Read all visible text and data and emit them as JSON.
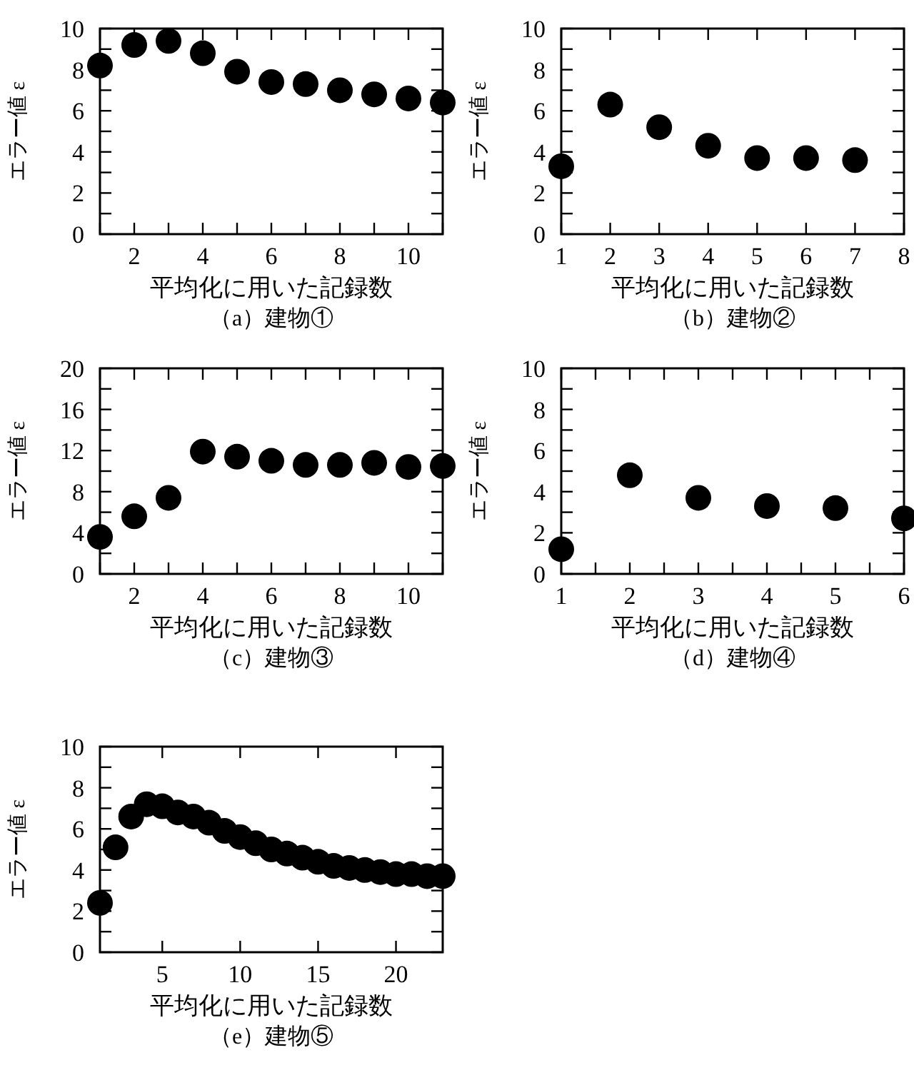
{
  "chart_data": [
    {
      "type": "scatter",
      "title": "（a）建物①",
      "xlabel": "平均化に用いた記録数",
      "ylabel": "エラー値 ε",
      "marker": "circle",
      "grid": false,
      "x": [
        1,
        2,
        3,
        4,
        5,
        6,
        7,
        8,
        9,
        10,
        11
      ],
      "series": [
        {
          "color": "#000000",
          "values": [
            8.2,
            9.2,
            9.4,
            8.8,
            7.9,
            7.4,
            7.3,
            7.0,
            6.8,
            6.6,
            6.4
          ]
        }
      ],
      "xlim": [
        1,
        11
      ],
      "xticks": [
        {
          "value": 1,
          "label": null
        },
        2,
        {
          "value": 3,
          "label": null
        },
        4,
        {
          "value": 5,
          "label": null
        },
        6,
        {
          "value": 7,
          "label": null
        },
        8,
        {
          "value": 9,
          "label": null
        },
        10,
        {
          "value": 11,
          "label": null
        }
      ],
      "ylim": [
        0,
        10
      ],
      "yticks": [
        0,
        {
          "value": 1,
          "label": null
        },
        2,
        {
          "value": 3,
          "label": null
        },
        4,
        {
          "value": 5,
          "label": null
        },
        6,
        {
          "value": 7,
          "label": null
        },
        8,
        {
          "value": 9,
          "label": null
        },
        10
      ]
    },
    {
      "type": "scatter",
      "title": "（b）建物②",
      "xlabel": "平均化に用いた記録数",
      "ylabel": "エラー値 ε",
      "marker": "circle",
      "grid": false,
      "x": [
        1,
        2,
        3,
        4,
        5,
        6,
        7
      ],
      "series": [
        {
          "color": "#000000",
          "values": [
            3.3,
            6.3,
            5.2,
            4.3,
            3.7,
            3.7,
            3.6
          ]
        }
      ],
      "xlim": [
        1,
        8
      ],
      "xticks": [
        1,
        2,
        3,
        4,
        5,
        6,
        7,
        8
      ],
      "ylim": [
        0,
        10
      ],
      "yticks": [
        0,
        {
          "value": 1,
          "label": null
        },
        2,
        {
          "value": 3,
          "label": null
        },
        4,
        {
          "value": 5,
          "label": null
        },
        6,
        {
          "value": 7,
          "label": null
        },
        8,
        {
          "value": 9,
          "label": null
        },
        10
      ]
    },
    {
      "type": "scatter",
      "title": "（c）建物③",
      "xlabel": "平均化に用いた記録数",
      "ylabel": "エラー値 ε",
      "marker": "circle",
      "grid": false,
      "x": [
        1,
        2,
        3,
        4,
        5,
        6,
        7,
        8,
        9,
        10,
        11
      ],
      "series": [
        {
          "color": "#000000",
          "values": [
            3.6,
            5.6,
            7.4,
            11.9,
            11.4,
            11.0,
            10.6,
            10.6,
            10.8,
            10.4,
            10.5
          ]
        }
      ],
      "xlim": [
        1,
        11
      ],
      "xticks": [
        {
          "value": 1,
          "label": null
        },
        2,
        {
          "value": 3,
          "label": null
        },
        4,
        {
          "value": 5,
          "label": null
        },
        6,
        {
          "value": 7,
          "label": null
        },
        8,
        {
          "value": 9,
          "label": null
        },
        10,
        {
          "value": 11,
          "label": null
        }
      ],
      "ylim": [
        0,
        20
      ],
      "yticks": [
        0,
        {
          "value": 2,
          "label": null
        },
        4,
        {
          "value": 6,
          "label": null
        },
        8,
        {
          "value": 10,
          "label": null
        },
        12,
        {
          "value": 14,
          "label": null
        },
        16,
        {
          "value": 18,
          "label": null
        },
        20
      ]
    },
    {
      "type": "scatter",
      "title": "（d）建物④",
      "xlabel": "平均化に用いた記録数",
      "ylabel": "エラー値 ε",
      "marker": "circle",
      "grid": false,
      "x": [
        1,
        2,
        3,
        4,
        5,
        6
      ],
      "series": [
        {
          "color": "#000000",
          "values": [
            1.2,
            4.8,
            3.7,
            3.3,
            3.2,
            2.7
          ]
        }
      ],
      "xlim": [
        1,
        6
      ],
      "xticks": [
        1,
        {
          "value": 1.5,
          "label": null
        },
        2,
        {
          "value": 2.5,
          "label": null
        },
        3,
        {
          "value": 3.5,
          "label": null
        },
        4,
        {
          "value": 4.5,
          "label": null
        },
        5,
        {
          "value": 5.5,
          "label": null
        },
        6
      ],
      "ylim": [
        0,
        10
      ],
      "yticks": [
        0,
        {
          "value": 1,
          "label": null
        },
        2,
        {
          "value": 3,
          "label": null
        },
        4,
        {
          "value": 5,
          "label": null
        },
        6,
        {
          "value": 7,
          "label": null
        },
        8,
        {
          "value": 9,
          "label": null
        },
        10
      ]
    },
    {
      "type": "scatter",
      "title": "（e）建物⑤",
      "xlabel": "平均化に用いた記録数",
      "ylabel": "エラー値 ε",
      "marker": "circle",
      "grid": false,
      "x": [
        1,
        2,
        3,
        4,
        5,
        6,
        7,
        8,
        9,
        10,
        11,
        12,
        13,
        14,
        15,
        16,
        17,
        18,
        19,
        20,
        21,
        22,
        23
      ],
      "series": [
        {
          "color": "#000000",
          "values": [
            2.4,
            5.1,
            6.6,
            7.2,
            7.1,
            6.8,
            6.6,
            6.3,
            5.9,
            5.6,
            5.3,
            5.0,
            4.8,
            4.6,
            4.4,
            4.2,
            4.1,
            4.0,
            3.9,
            3.8,
            3.8,
            3.7,
            3.7
          ]
        }
      ],
      "xlim": [
        1,
        23
      ],
      "xticks": [
        5,
        10,
        15,
        20
      ],
      "ylim": [
        0,
        10
      ],
      "yticks": [
        0,
        {
          "value": 1,
          "label": null
        },
        2,
        {
          "value": 3,
          "label": null
        },
        4,
        {
          "value": 5,
          "label": null
        },
        6,
        {
          "value": 7,
          "label": null
        },
        8,
        {
          "value": 9,
          "label": null
        },
        10
      ]
    }
  ]
}
